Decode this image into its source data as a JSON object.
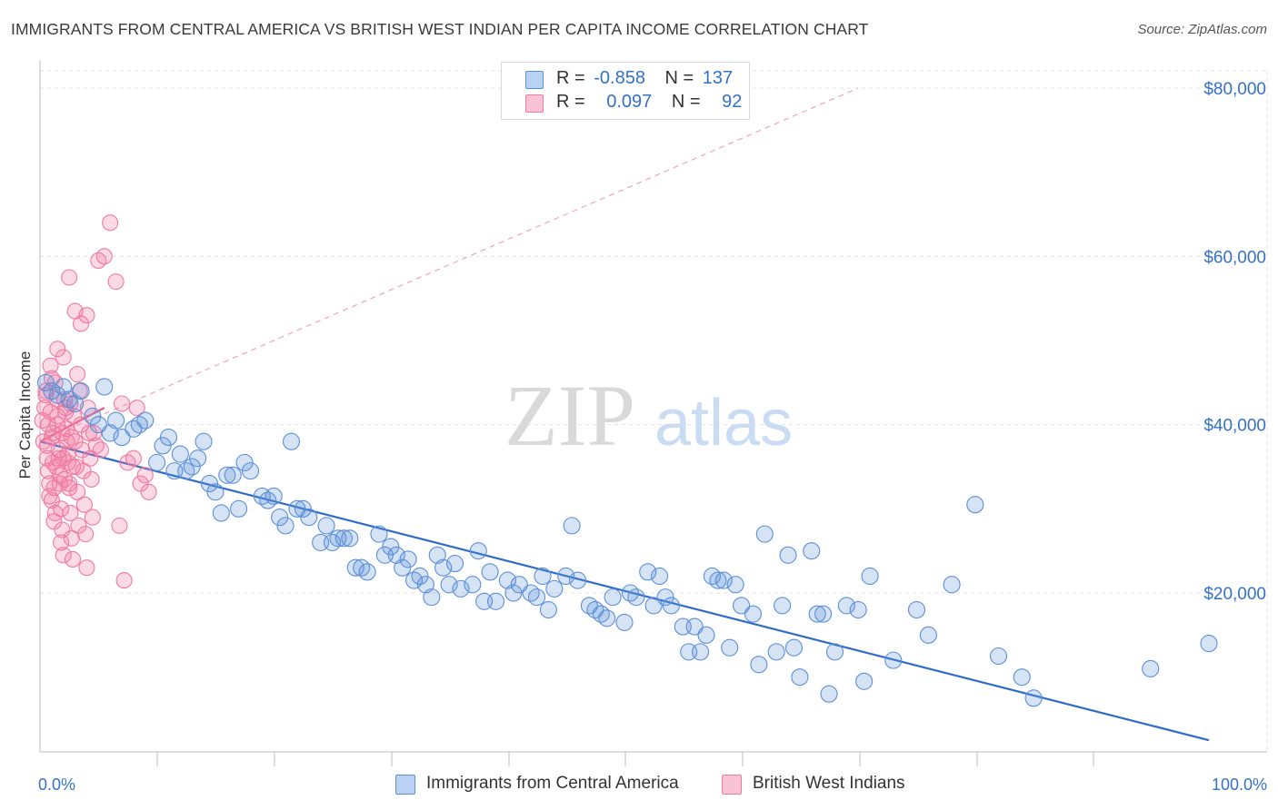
{
  "header": {
    "title": "IMMIGRANTS FROM CENTRAL AMERICA VS BRITISH WEST INDIAN PER CAPITA INCOME CORRELATION CHART",
    "source": "Source: ZipAtlas.com"
  },
  "watermark": {
    "zip": "ZIP",
    "atlas": "atlas"
  },
  "legend": {
    "rows": [
      {
        "r_label": "R =",
        "r_value": "-0.858",
        "n_label": "N =",
        "n_value": "137"
      },
      {
        "r_label": "R =",
        "r_value": "0.097",
        "n_label": "N =",
        "n_value": "92"
      }
    ]
  },
  "chart_data": {
    "type": "scatter",
    "title": "IMMIGRANTS FROM CENTRAL AMERICA VS BRITISH WEST INDIAN PER CAPITA INCOME CORRELATION CHART",
    "xlabel": "",
    "ylabel": "Per Capita Income",
    "xlim": [
      0,
      100
    ],
    "ylim": [
      0,
      80000
    ],
    "x_tick_labels": [
      "0.0%",
      "100.0%"
    ],
    "y_ticks": [
      20000,
      40000,
      60000,
      80000
    ],
    "y_tick_labels": [
      "$20,000",
      "$40,000",
      "$60,000",
      "$80,000"
    ],
    "grid": true,
    "legend_position": "top-center",
    "colors": {
      "blue": "#5b8fd9",
      "blue_line": "#2f6cc9",
      "pink": "#f07aa0",
      "pink_line": "#e9578a",
      "accent_text": "#3471c8"
    },
    "series": [
      {
        "name": "Immigrants from Central America",
        "color": "#5b8fd9",
        "trend": {
          "x": [
            0,
            100
          ],
          "y": [
            38000,
            2500
          ],
          "style": "solid"
        },
        "points": [
          [
            0.5,
            45000
          ],
          [
            1,
            44000
          ],
          [
            1.5,
            43500
          ],
          [
            2,
            44500
          ],
          [
            2.5,
            43000
          ],
          [
            3,
            42500
          ],
          [
            3.5,
            44000
          ],
          [
            4.5,
            41000
          ],
          [
            5,
            40000
          ],
          [
            5.5,
            44500
          ],
          [
            6,
            39000
          ],
          [
            6.5,
            40500
          ],
          [
            7,
            38500
          ],
          [
            8,
            39500
          ],
          [
            8.5,
            40000
          ],
          [
            9,
            40500
          ],
          [
            10,
            35500
          ],
          [
            10.5,
            37500
          ],
          [
            11,
            38500
          ],
          [
            11.5,
            34500
          ],
          [
            12,
            36500
          ],
          [
            12.5,
            34500
          ],
          [
            13,
            35000
          ],
          [
            13.5,
            36000
          ],
          [
            14,
            38000
          ],
          [
            14.5,
            33000
          ],
          [
            15,
            32000
          ],
          [
            15.5,
            29500
          ],
          [
            16,
            34000
          ],
          [
            16.5,
            34000
          ],
          [
            17,
            30000
          ],
          [
            17.5,
            35500
          ],
          [
            18,
            34500
          ],
          [
            19,
            31500
          ],
          [
            19.5,
            31000
          ],
          [
            20,
            31500
          ],
          [
            20.5,
            29000
          ],
          [
            21,
            28000
          ],
          [
            21.5,
            38000
          ],
          [
            22,
            30000
          ],
          [
            22.5,
            30000
          ],
          [
            23,
            29000
          ],
          [
            24,
            26000
          ],
          [
            24.5,
            28000
          ],
          [
            25,
            26000
          ],
          [
            25.5,
            26500
          ],
          [
            26,
            26500
          ],
          [
            26.5,
            26500
          ],
          [
            27,
            23000
          ],
          [
            27.5,
            23000
          ],
          [
            28,
            22500
          ],
          [
            29,
            27000
          ],
          [
            29.5,
            24500
          ],
          [
            30,
            25500
          ],
          [
            30.5,
            24500
          ],
          [
            31,
            23000
          ],
          [
            31.5,
            24000
          ],
          [
            32,
            21500
          ],
          [
            32.5,
            22000
          ],
          [
            33,
            21000
          ],
          [
            33.5,
            19500
          ],
          [
            34,
            24500
          ],
          [
            34.5,
            23000
          ],
          [
            35,
            21000
          ],
          [
            35.5,
            23500
          ],
          [
            36,
            20500
          ],
          [
            37,
            21000
          ],
          [
            37.5,
            25000
          ],
          [
            38,
            19000
          ],
          [
            38.5,
            22500
          ],
          [
            39,
            19000
          ],
          [
            40,
            21500
          ],
          [
            40.5,
            20000
          ],
          [
            41,
            21000
          ],
          [
            42,
            20000
          ],
          [
            42.5,
            19500
          ],
          [
            43,
            22000
          ],
          [
            43.5,
            18000
          ],
          [
            44,
            20500
          ],
          [
            45,
            22000
          ],
          [
            45.5,
            28000
          ],
          [
            46,
            21500
          ],
          [
            47,
            18500
          ],
          [
            47.5,
            18000
          ],
          [
            48,
            17500
          ],
          [
            48.5,
            17000
          ],
          [
            49,
            19500
          ],
          [
            50,
            16500
          ],
          [
            50.5,
            20000
          ],
          [
            51,
            19500
          ],
          [
            52,
            22500
          ],
          [
            52.5,
            18500
          ],
          [
            53,
            22000
          ],
          [
            53.5,
            19500
          ],
          [
            54,
            18500
          ],
          [
            55,
            16000
          ],
          [
            55.5,
            13000
          ],
          [
            56,
            16000
          ],
          [
            56.5,
            13000
          ],
          [
            57,
            15000
          ],
          [
            57.5,
            22000
          ],
          [
            58,
            21500
          ],
          [
            58.5,
            21500
          ],
          [
            59,
            13500
          ],
          [
            59.5,
            21000
          ],
          [
            60,
            18500
          ],
          [
            61,
            17500
          ],
          [
            61.5,
            11500
          ],
          [
            62,
            27000
          ],
          [
            63,
            13000
          ],
          [
            63.5,
            18500
          ],
          [
            64,
            24500
          ],
          [
            64.5,
            13500
          ],
          [
            65,
            10000
          ],
          [
            66,
            25000
          ],
          [
            66.5,
            17500
          ],
          [
            67,
            17500
          ],
          [
            67.5,
            8000
          ],
          [
            68,
            13000
          ],
          [
            69,
            18500
          ],
          [
            70,
            18000
          ],
          [
            70.5,
            9500
          ],
          [
            71,
            22000
          ],
          [
            73,
            12000
          ],
          [
            75,
            18000
          ],
          [
            76,
            15000
          ],
          [
            78,
            21000
          ],
          [
            80,
            30500
          ],
          [
            82,
            12500
          ],
          [
            84,
            10000
          ],
          [
            85,
            7500
          ],
          [
            95,
            11000
          ],
          [
            100,
            14000
          ]
        ]
      },
      {
        "name": "British West Indians",
        "color": "#f07aa0",
        "trend": {
          "x": [
            0,
            5.5
          ],
          "y": [
            38000,
            42000
          ],
          "style": "solid"
        },
        "trend_extension": {
          "x": [
            0,
            70
          ],
          "y": [
            38000,
            80000
          ],
          "style": "dashed"
        },
        "points": [
          [
            0.3,
            38000
          ],
          [
            0.4,
            42000
          ],
          [
            0.5,
            44000
          ],
          [
            0.6,
            36000
          ],
          [
            0.7,
            40000
          ],
          [
            0.8,
            33000
          ],
          [
            0.9,
            47000
          ],
          [
            1,
            31000
          ],
          [
            1.1,
            39000
          ],
          [
            1.2,
            28500
          ],
          [
            1.3,
            45000
          ],
          [
            1.4,
            35000
          ],
          [
            1.5,
            41000
          ],
          [
            1.6,
            37000
          ],
          [
            1.7,
            34000
          ],
          [
            1.8,
            30000
          ],
          [
            1.9,
            27500
          ],
          [
            2,
            24500
          ],
          [
            2.1,
            43000
          ],
          [
            2.2,
            42000
          ],
          [
            2.3,
            39500
          ],
          [
            2.4,
            36500
          ],
          [
            2.5,
            33000
          ],
          [
            2.6,
            29500
          ],
          [
            2.7,
            26500
          ],
          [
            2.8,
            24000
          ],
          [
            2.9,
            41000
          ],
          [
            3,
            38000
          ],
          [
            3.1,
            35000
          ],
          [
            3.2,
            32000
          ],
          [
            3.3,
            28000
          ],
          [
            3.4,
            44000
          ],
          [
            3.5,
            40000
          ],
          [
            3.6,
            37000
          ],
          [
            3.7,
            34500
          ],
          [
            3.8,
            30500
          ],
          [
            3.9,
            27000
          ],
          [
            4,
            23000
          ],
          [
            4.1,
            42000
          ],
          [
            4.2,
            39000
          ],
          [
            4.3,
            36000
          ],
          [
            4.4,
            33500
          ],
          [
            4.5,
            29000
          ],
          [
            0.5,
            43500
          ],
          [
            0.6,
            37500
          ],
          [
            0.7,
            34500
          ],
          [
            0.8,
            31500
          ],
          [
            0.9,
            41500
          ],
          [
            1,
            38500
          ],
          [
            1.1,
            35500
          ],
          [
            1.2,
            32500
          ],
          [
            1.3,
            29500
          ],
          [
            1.4,
            43000
          ],
          [
            1.5,
            40000
          ],
          [
            1.6,
            36000
          ],
          [
            1.7,
            33000
          ],
          [
            1.8,
            26000
          ],
          [
            1.9,
            39000
          ],
          [
            2,
            36000
          ],
          [
            2.1,
            33500
          ],
          [
            2.2,
            41500
          ],
          [
            2.3,
            38000
          ],
          [
            2.4,
            35500
          ],
          [
            2.5,
            32500
          ],
          [
            2.6,
            42500
          ],
          [
            2.7,
            38500
          ],
          [
            2.8,
            35000
          ],
          [
            3,
            53500
          ],
          [
            3.5,
            52000
          ],
          [
            4,
            53000
          ],
          [
            2.5,
            57500
          ],
          [
            1.5,
            49000
          ],
          [
            3.2,
            46000
          ],
          [
            4.8,
            37500
          ],
          [
            5,
            59500
          ],
          [
            5.5,
            60000
          ],
          [
            6,
            64000
          ],
          [
            6.5,
            57000
          ],
          [
            7,
            42500
          ],
          [
            7.5,
            35500
          ],
          [
            8,
            36000
          ],
          [
            8.3,
            42000
          ],
          [
            8.6,
            33000
          ],
          [
            9,
            34000
          ],
          [
            9.3,
            32000
          ],
          [
            6.8,
            28000
          ],
          [
            7.2,
            21500
          ],
          [
            5.2,
            37000
          ],
          [
            4.6,
            39000
          ],
          [
            2,
            48000
          ],
          [
            1,
            45500
          ],
          [
            0.2,
            40500
          ]
        ]
      }
    ]
  },
  "x_axis": {
    "left_label": "0.0%",
    "right_label": "100.0%"
  },
  "bottom_legend": {
    "items": [
      {
        "label": "Immigrants from Central America"
      },
      {
        "label": "British West Indians"
      }
    ]
  }
}
